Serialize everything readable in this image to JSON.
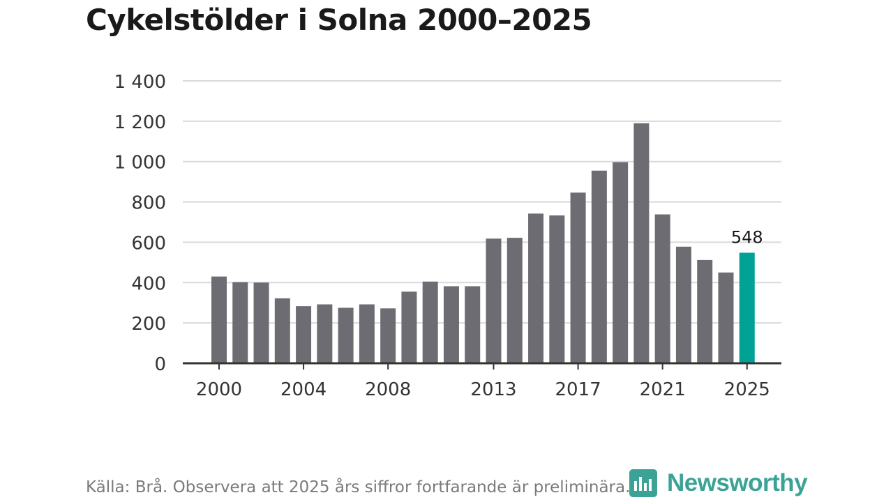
{
  "title": "Cykelstölder i Solna 2000–2025",
  "chart_data": {
    "type": "bar",
    "title": "Cykelstölder i Solna 2000–2025",
    "xlabel": "",
    "ylabel": "",
    "ylim": [
      0,
      1400
    ],
    "yticks": [
      0,
      200,
      400,
      600,
      800,
      1000,
      1200,
      1400
    ],
    "ytick_labels": [
      "0",
      "200",
      "400",
      "600",
      "800",
      "1 000",
      "1 200",
      "1 400"
    ],
    "xticks": [
      "2000",
      "2004",
      "2008",
      "2013",
      "2017",
      "2021",
      "2025"
    ],
    "categories": [
      "2000",
      "2001",
      "2002",
      "2003",
      "2004",
      "2005",
      "2006",
      "2007",
      "2008",
      "2009",
      "2010",
      "2011",
      "2012",
      "2013",
      "2014",
      "2015",
      "2016",
      "2017",
      "2018",
      "2019",
      "2020",
      "2021",
      "2022",
      "2023",
      "2024",
      "2025"
    ],
    "values": [
      430,
      402,
      400,
      322,
      283,
      292,
      275,
      292,
      272,
      355,
      405,
      382,
      382,
      618,
      622,
      742,
      733,
      846,
      955,
      997,
      1190,
      738,
      578,
      512,
      450,
      548
    ],
    "highlight": {
      "category": "2025",
      "label": "548"
    },
    "grid": true,
    "colors": {
      "bar": "#6d6c72",
      "highlight": "#00a295",
      "grid": "#d9d9d9",
      "axis": "#333333"
    }
  },
  "footer": {
    "note": "Källa: Brå. Observera att 2025 års siffror fortfarande är preliminära.",
    "brand": "Newsworthy",
    "brand_icon": "newsworthy-logo-icon"
  }
}
